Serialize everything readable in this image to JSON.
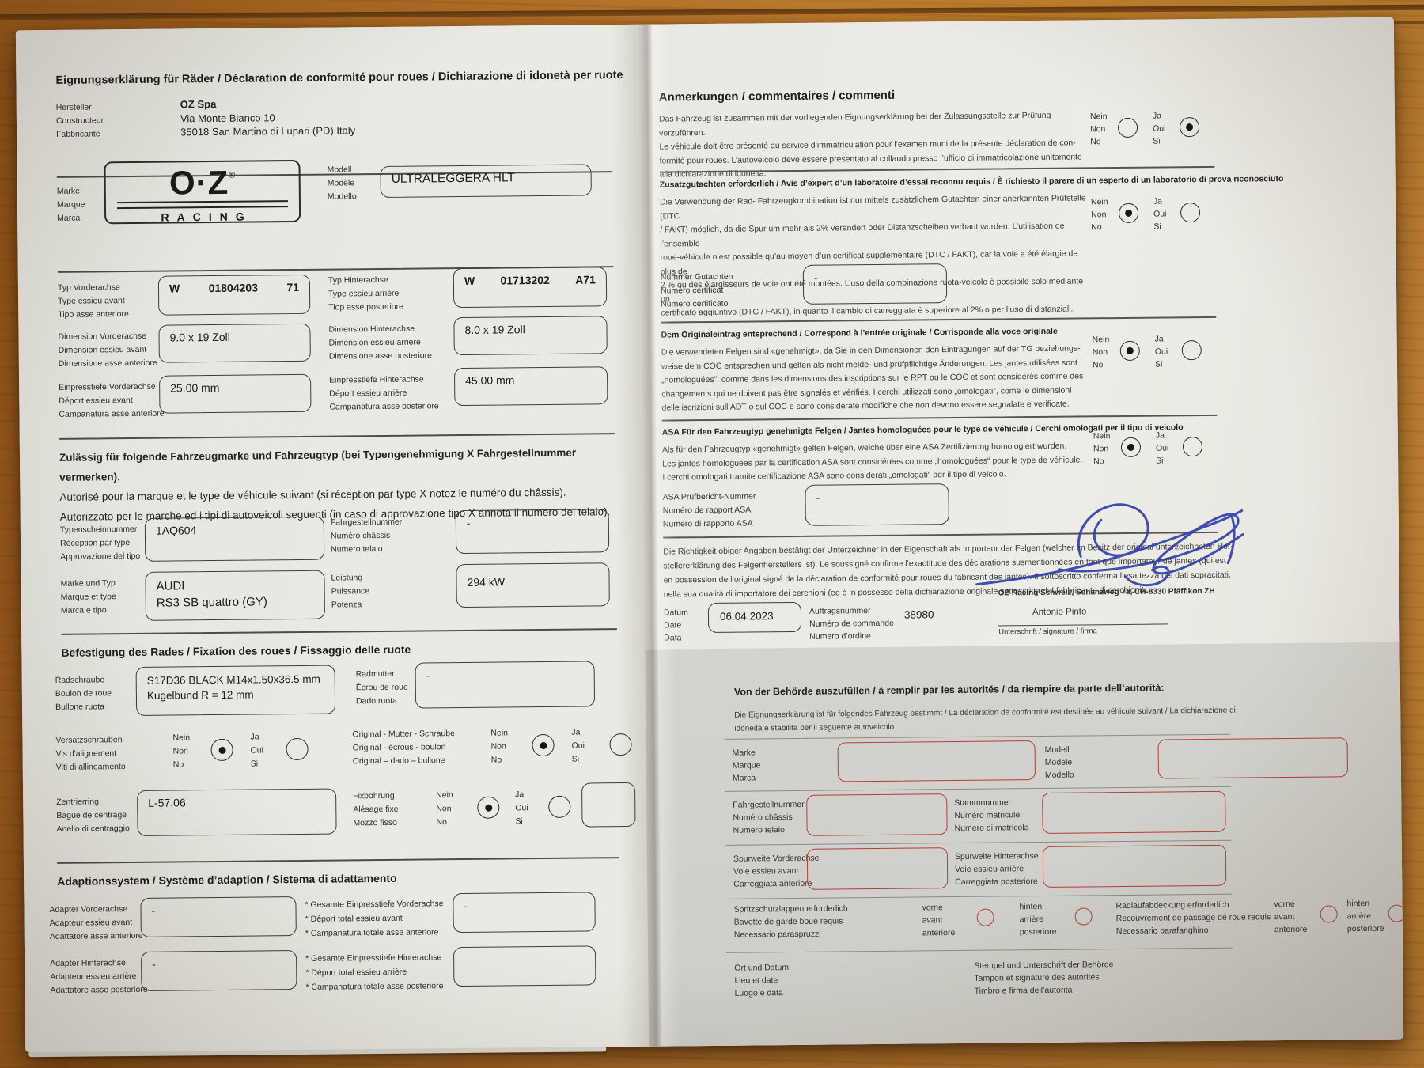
{
  "left_page": {
    "title": "Eignungserklärung für Räder / Déclaration de conformité pour roues / Dichiarazione di idonetà per ruote",
    "manufacturer": {
      "labels": [
        "Hersteller",
        "Constructeur",
        "Fabbricante"
      ],
      "name": "OZ Spa",
      "address_lines": [
        "Via Monte Bianco 10",
        "35018 San Martino di Lupari (PD) Italy"
      ]
    },
    "brand": {
      "labels": [
        "Marke",
        "Marque",
        "Marca"
      ],
      "logo_main": "O·Z",
      "logo_reg": "®",
      "logo_sub": "RACING",
      "model_labels": [
        "Modell",
        "Modèle",
        "Modello"
      ],
      "model_value": "ULTRALEGGERA HLT"
    },
    "typ_front": {
      "labels": [
        "Typ Vorderachse",
        "Type essieu avant",
        "Tipo asse anteriore"
      ],
      "prefix": "W",
      "number": "01804203",
      "suffix": "71"
    },
    "typ_rear": {
      "labels": [
        "Typ Hinterachse",
        "Type essieu arrière",
        "Tiop asse posteriore"
      ],
      "prefix": "W",
      "number": "01713202",
      "suffix": "A71"
    },
    "dim_front": {
      "labels": [
        "Dimension Vorderachse",
        "Dimension essieu avant",
        "Dimensione asse anteriore"
      ],
      "value": "9.0 x 19 Zoll"
    },
    "dim_rear": {
      "labels": [
        "Dimension Hinterachse",
        "Dimension essieu arrière",
        "Dimensione asse posteriore"
      ],
      "value": "8.0 x 19 Zoll"
    },
    "et_front": {
      "labels": [
        "Einpresstiefe Vorderachse",
        "Déport essieu avant",
        "Campanatura asse anteriore"
      ],
      "value": "25.00 mm"
    },
    "et_rear": {
      "labels": [
        "Einpresstiefe Hinterachse",
        "Déport essieu arrière",
        "Campanatura asse posteriore"
      ],
      "value": "45.00 mm"
    },
    "vehicle_heading": {
      "line1": "Zulässig für folgende Fahrzeugmarke und Fahrzeugtyp (bei Typengenehmigung X Fahrgestellnummer vermerken).",
      "line2": "Autorisé pour la marque et le type de véhicule suivant (si réception par type X notez le numéro du châssis).",
      "line3": "Autorizzato per le marche ed i tipi di autoveicoli seguenti (in caso di approvazione tipo X annota il numero del telaio)."
    },
    "typenschein": {
      "labels": [
        "Typenscheinnummer",
        "Réception par type",
        "Approvazione del tipo"
      ],
      "value": "1AQ604"
    },
    "chassis": {
      "labels": [
        "Fahrgestellnummer",
        "Numéro châssis",
        "Numero telaio"
      ],
      "value": "-"
    },
    "make_type": {
      "labels": [
        "Marke und Typ",
        "Marque et type",
        "Marca e tipo"
      ],
      "value_lines": [
        "AUDI",
        "RS3 SB quattro (GY)"
      ]
    },
    "power": {
      "labels": [
        "Leistung",
        "Puissance",
        "Potenza"
      ],
      "value": "294 kW"
    },
    "fixation_heading": "Befestigung des Rades / Fixation des roues / Fissaggio delle ruote",
    "wheel_bolt": {
      "labels": [
        "Radschraube",
        "Boulon de roue",
        "Bullone ruota"
      ],
      "value_lines": [
        "S17D36 BLACK M14x1.50x36.5 mm",
        "Kugelbund R = 12 mm"
      ]
    },
    "wheel_nut": {
      "labels": [
        "Radmutter",
        "Écrou de roue",
        "Dado ruota"
      ],
      "value": "-"
    },
    "offset_screws": {
      "labels": [
        "Versatzschrauben",
        "Vis d'alignement",
        "Viti di allineamento"
      ],
      "no_labels": [
        "Nein",
        "Non",
        "No"
      ],
      "yes_labels": [
        "Ja",
        "Oui",
        "Si"
      ],
      "no_checked": true,
      "yes_checked": false
    },
    "original_nut": {
      "labels": [
        "Original - Mutter - Schraube",
        "Original - écrous - boulon",
        "Original – dado – bullone"
      ],
      "no_labels": [
        "Nein",
        "Non",
        "No"
      ],
      "yes_labels": [
        "Ja",
        "Oui",
        "Si"
      ],
      "no_checked": true,
      "yes_checked": false
    },
    "center_ring": {
      "labels": [
        "Zentrierring",
        "Bague de centrage",
        "Anello di centraggio"
      ],
      "value": "L-57.06"
    },
    "fixed_bore": {
      "labels": [
        "Fixbohrung",
        "Alésage fixe",
        "Mozzo fisso"
      ],
      "no_labels": [
        "Nein",
        "Non",
        "No"
      ],
      "yes_labels": [
        "Ja",
        "Oui",
        "Si"
      ],
      "no_checked": true,
      "yes_checked": false,
      "extra_value": ""
    },
    "adaption_heading": "Adaptionssystem / Système d’adaption / Sistema di adattamento",
    "adapter_front": {
      "labels": [
        "Adapter Vorderachse",
        "Adapteur essieu avant",
        "Adattatore asse anteriore"
      ],
      "value": "-"
    },
    "total_et_front": {
      "labels": [
        "* Gesamte Einpresstiefe Vorderachse",
        "* Déport total essieu avant",
        "* Campanatura totale asse anteriore"
      ],
      "value": "-"
    },
    "adapter_rear": {
      "labels": [
        "Adapter Hinterachse",
        "Adapteur essieu arrière",
        "Adattatore asse posteriore"
      ],
      "value": "-"
    },
    "total_et_rear": {
      "labels": [
        "* Gesamte Einpresstiefe Hinterachse",
        "* Déport total essieu arrière",
        "* Campanatura totale asse posteriore"
      ],
      "value": ""
    }
  },
  "right_page": {
    "heading": "Anmerkungen / commentaires / commenti",
    "q1": {
      "lines": [
        "Das Fahrzeug ist zusammen mit der vorliegenden Eignungserklärung bei der Zulassungsstelle zur Prüfung vorzuführen.",
        "Le véhicule doit être présenté au service d’immatriculation pour l’examen muni de la présente déclaration de con-",
        "formité pour roues. L’autoveicolo deve essere presentato al collaudo presso l’ufficio di immatricolazione unitamente",
        "alla dichiarazione di idoneità."
      ],
      "no_labels": [
        "Nein",
        "Non",
        "No"
      ],
      "yes_labels": [
        "Ja",
        "Oui",
        "Si"
      ],
      "no_checked": false,
      "yes_checked": true
    },
    "q2": {
      "heading": "Zusatzgutachten erforderlich /  Avis d’expert d’un laboratoire d’essai reconnu requis / È richiesto il parere di un esperto di un laboratorio di prova riconosciuto",
      "lines": [
        "Die Verwendung der Rad- Fahrzeugkombination ist nur mittels zusätzlichem Gutachten einer anerkannten Prüfstelle (DTC",
        "/ FAKT) möglich, da die Spur um mehr als 2% verändert oder Distanzscheiben verbaut wurden. L’utilisation de l’ensemble",
        "roue-véhicule n’est possible qu’au moyen d’un certificat supplémentaire (DTC / FAKT), car la voie a été élargie de plus de",
        "2 % ou des élargisseurs de voie ont été montées. L’uso della combinazione ruota-veicolo è possibile solo mediante un",
        "certificato aggiuntivo (DTC / FAKT), in quanto il cambio di carreggiata è superiore al 2% o per l’uso di distanziali."
      ],
      "no_labels": [
        "Nein",
        "Non",
        "No"
      ],
      "yes_labels": [
        "Ja",
        "Oui",
        "Si"
      ],
      "no_checked": true,
      "yes_checked": false,
      "number": {
        "labels": [
          "Nummer Gutachten",
          "Numéro certificat",
          "Numero certificato"
        ],
        "value": "-"
      }
    },
    "q3": {
      "heading": "Dem Originaleintrag entsprechend / Correspond à l’entrée originale / Corrisponde alla voce originale",
      "lines": [
        "Die verwendeten Felgen sind «genehmigt», da Sie in den Dimensionen den Eintragungen auf der TG beziehungs-",
        "weise dem COC entsprechen und gelten als nicht melde- und prüfpflichtige Änderungen. Les jantes utilisées sont",
        "„homologuées”, comme dans les dimensions des inscriptions sur le RPT ou le COC et sont considérés comme des",
        "changements qui ne doivent pas être signalés et vérifiés. I cerchi utilizzati sono „omologati”, come le dimensioni",
        "delle iscrizioni sull’ADT o sul COC e sono considerate modifiche che non devono essere segnalate e verificate."
      ],
      "no_labels": [
        "Nein",
        "Non",
        "No"
      ],
      "yes_labels": [
        "Ja",
        "Oui",
        "Si"
      ],
      "no_checked": true,
      "yes_checked": false
    },
    "q4": {
      "heading": "ASA Für den Fahrzeugtyp genehmigte Felgen / Jantes homologuées pour le type de véhicule / Cerchi omologati per il tipo di veicolo",
      "lines": [
        "Als für den Fahrzeugtyp «genehmigt» gelten Felgen, welche über eine ASA Zertifizierung homologiert wurden.",
        "Les jantes homologuées par la certification ASA sont considérées comme „homologuées“ pour le type de véhicule.",
        "I cerchi omologati tramite certificazione ASA sono considerati „omologati“ per il tipo di veicolo."
      ],
      "no_labels": [
        "Nein",
        "Non",
        "No"
      ],
      "yes_labels": [
        "Ja",
        "Oui",
        "Si"
      ],
      "no_checked": true,
      "yes_checked": false,
      "asa_number": {
        "labels": [
          "ASA Prüfbericht-Nummer",
          "Numéro de rapport ASA",
          "Numero di rapporto ASA"
        ],
        "value": "-"
      }
    },
    "confirmation_lines": [
      "Die Richtigkeit obiger Angaben bestätigt der Unterzeichner in der Eigenschaft als Importeur der Felgen (welcher im Besitz der original unterzeichneten Her-",
      "stellererklärung des Felgenherstellers ist). Le soussigné confirme l’exactitude des déclarations susmentionnées en tant que importateur de jantes (qui est",
      "en possession de l’original signé de la déclaration de conformité pour roues du fabricant des jantes). Il sottoscritto conferma l’esattezza dei dati sopracitati,",
      "nella sua qualità di importatore dei cerchioni (ed è in possesso della dichiarazione originale sottoscritta dal fabbricante di cerchioni)."
    ],
    "signoff": {
      "date_labels": [
        "Datum",
        "Date",
        "Data"
      ],
      "date_value": "06.04.2023",
      "order_labels": [
        "Auftragsnummer",
        "Numéro de commande",
        "Numero d’ordine"
      ],
      "order_value": "38980",
      "company_line": "OZ-Racing Schweiz, Schanzweg 7a, CH-8330 Pfäffikon ZH",
      "signer_name": "Antonio Pinto",
      "signature_caption": "Unterschrift / signature / firma"
    },
    "authority": {
      "heading": "Von der Behörde auszufüllen / à remplir par les autorités / da riempire da parte dell’autorità:",
      "intro_lines": [
        "Die Eignungserklärung ist für folgendes Fahrzeug bestimmt / La déclaration de conformité est destinée au véhicule suivant / La dichiarazione di",
        "idoneità è stabilita per il seguente autoveicolo"
      ],
      "make_labels": [
        "Marke",
        "Marque",
        "Marca"
      ],
      "model_labels": [
        "Modell",
        "Modèle",
        "Modello"
      ],
      "chassis_labels": [
        "Fahrgestellnummer",
        "Numéro châssis",
        "Numero telaio"
      ],
      "stamm_labels": [
        "Stammnummer",
        "Numéro matricule",
        "Numero di matricola"
      ],
      "track_front_labels": [
        "Spurweite Vorderachse",
        "Voie essieu avant",
        "Carreggiata anteriore"
      ],
      "track_rear_labels": [
        "Spurweite Hinterachse",
        "Voie essieu arrière",
        "Carreggiata posteriore"
      ],
      "mudflap_labels": [
        "Spritzschutzlappen erforderlich",
        "Bavette de garde boue requis",
        "Necessario paraspruzzi"
      ],
      "mudflap_front": [
        "vorne",
        "avant",
        "anteriore"
      ],
      "mudflap_rear": [
        "hinten",
        "arrière",
        "posteriore"
      ],
      "wheelcover_labels": [
        "Radlaufabdeckung erforderlich",
        "Recouvrement de passage de roue requis",
        "Necessario parafanghino"
      ],
      "wheelcover_front": [
        "vorne",
        "avant",
        "anteriore"
      ],
      "wheelcover_rear": [
        "hinten",
        "arrière",
        "posteriore"
      ],
      "place_date_labels": [
        "Ort und Datum",
        "Lieu et date",
        "Luogo e data"
      ],
      "stamp_labels": [
        "Stempel und Unterschrift der Behörde",
        "Tampon et signature des autorités",
        "Timbro e firma dell’autorità"
      ]
    }
  }
}
